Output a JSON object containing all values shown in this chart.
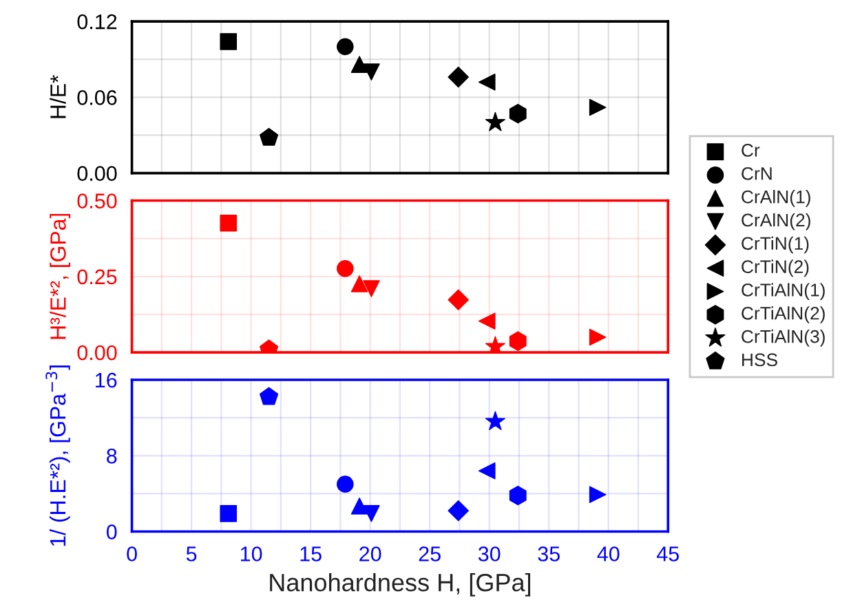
{
  "chart_data": [
    {
      "type": "scatter",
      "ylabel": "H/E*",
      "xlim": [
        0,
        45
      ],
      "ylim": [
        0,
        0.12
      ],
      "xticks": [
        0,
        {
          "value": 2.5,
          "label": null
        },
        5,
        {
          "value": 7.5,
          "label": null
        },
        10,
        {
          "value": 12.5,
          "label": null
        },
        15,
        {
          "value": 17.5,
          "label": null
        },
        20,
        {
          "value": 22.5,
          "label": null
        },
        25,
        {
          "value": 27.5,
          "label": null
        },
        30,
        {
          "value": 32.5,
          "label": null
        },
        35,
        {
          "value": 37.5,
          "label": null
        },
        40,
        {
          "value": 42.5,
          "label": null
        },
        45
      ],
      "yticks": [
        {
          "value": 0,
          "label": "0.00"
        },
        {
          "value": 0.03,
          "label": null
        },
        0.06,
        {
          "value": 0.09,
          "label": null
        },
        0.12
      ],
      "tick_labels": "y",
      "grid": true,
      "legend": "right",
      "series": [
        {
          "name": "Cr",
          "marker": "square",
          "color": "#000000",
          "x": [
            8.1
          ],
          "values": [
            0.104
          ]
        },
        {
          "name": "CrN",
          "marker": "circle",
          "color": "#000000",
          "x": [
            17.9
          ],
          "values": [
            0.1
          ]
        },
        {
          "name": "CrAlN(1)",
          "marker": "triangle",
          "color": "#000000",
          "x": [
            19.1
          ],
          "values": [
            0.086
          ]
        },
        {
          "name": "CrAlN(2)",
          "marker": "triangle-down",
          "color": "#000000",
          "x": [
            20.1
          ],
          "values": [
            0.08
          ]
        },
        {
          "name": "CrTiN(1)",
          "marker": "diamond",
          "color": "#000000",
          "x": [
            27.4
          ],
          "values": [
            0.076
          ]
        },
        {
          "name": "CrTiN(2)",
          "marker": "triangle-left",
          "color": "#000000",
          "x": [
            29.8
          ],
          "values": [
            0.072
          ]
        },
        {
          "name": "CrTiAlN(1)",
          "marker": "triangle-right",
          "color": "#000000",
          "x": [
            39.1
          ],
          "values": [
            0.052
          ]
        },
        {
          "name": "CrTiAlN(2)",
          "color": "#000000",
          "x": [
            32.4
          ],
          "values": [
            0.047
          ]
        },
        {
          "name": "CrTiAlN(3)",
          "marker": "star",
          "color": "#000000",
          "x": [
            30.5
          ],
          "values": [
            0.04
          ]
        },
        {
          "name": "HSS",
          "color": "#000000",
          "x": [
            11.5
          ],
          "values": [
            0.028
          ]
        }
      ]
    },
    {
      "type": "scatter",
      "ylabel": "H³/E*², [GPa]",
      "xlim": [
        0,
        45
      ],
      "ylim": [
        0,
        0.5
      ],
      "xticks": [
        0,
        {
          "value": 2.5,
          "label": null
        },
        5,
        {
          "value": 7.5,
          "label": null
        },
        10,
        {
          "value": 12.5,
          "label": null
        },
        15,
        {
          "value": 17.5,
          "label": null
        },
        20,
        {
          "value": 22.5,
          "label": null
        },
        25,
        {
          "value": 27.5,
          "label": null
        },
        30,
        {
          "value": 32.5,
          "label": null
        },
        35,
        {
          "value": 37.5,
          "label": null
        },
        40,
        {
          "value": 42.5,
          "label": null
        },
        45
      ],
      "yticks": [
        {
          "value": 0,
          "label": "0.00"
        },
        {
          "value": 0.125,
          "label": null
        },
        0.25,
        {
          "value": 0.375,
          "label": null
        },
        {
          "value": 0.5,
          "label": "0.50"
        }
      ],
      "tick_labels": "y",
      "grid": true,
      "series": [
        {
          "marker": "square",
          "color": "#ff0000",
          "x": [
            8.1
          ],
          "values": [
            0.426
          ]
        },
        {
          "marker": "circle",
          "color": "#ff0000",
          "x": [
            17.9
          ],
          "values": [
            0.276
          ]
        },
        {
          "marker": "triangle",
          "color": "#ff0000",
          "x": [
            19.1
          ],
          "values": [
            0.226
          ]
        },
        {
          "marker": "triangle-down",
          "color": "#ff0000",
          "x": [
            20.1
          ],
          "values": [
            0.21
          ]
        },
        {
          "marker": "diamond",
          "color": "#ff0000",
          "x": [
            27.4
          ],
          "values": [
            0.173
          ]
        },
        {
          "marker": "triangle-left",
          "color": "#ff0000",
          "x": [
            29.8
          ],
          "values": [
            0.103
          ]
        },
        {
          "marker": "triangle-right",
          "color": "#ff0000",
          "x": [
            39.1
          ],
          "values": [
            0.05
          ]
        },
        {
          "color": "#ff0000",
          "x": [
            32.4
          ],
          "values": [
            0.037
          ]
        },
        {
          "marker": "star",
          "color": "#ff0000",
          "x": [
            30.5
          ],
          "values": [
            0.019
          ]
        },
        {
          "color": "#ff0000",
          "x": [
            11.5
          ],
          "values": [
            0.01
          ]
        }
      ]
    },
    {
      "type": "scatter",
      "xlabel": "Nanohardness H, [GPa]",
      "ylabel": "1/ (H.E*²), [GPa$^{−3}$]",
      "xlim": [
        0,
        45
      ],
      "ylim": [
        0,
        16
      ],
      "xticks": [
        0,
        {
          "value": 2.5,
          "label": null
        },
        5,
        {
          "value": 7.5,
          "label": null
        },
        10,
        {
          "value": 12.5,
          "label": null
        },
        15,
        {
          "value": 17.5,
          "label": null
        },
        20,
        {
          "value": 22.5,
          "label": null
        },
        25,
        {
          "value": 27.5,
          "label": null
        },
        30,
        {
          "value": 32.5,
          "label": null
        },
        35,
        {
          "value": 37.5,
          "label": null
        },
        40,
        {
          "value": 42.5,
          "label": null
        },
        45
      ],
      "yticks": [
        0,
        {
          "value": 4,
          "label": null
        },
        8,
        {
          "value": 12,
          "label": null
        },
        16
      ],
      "grid": true,
      "series": [
        {
          "marker": "square",
          "color": "#0000ff",
          "x": [
            8.1
          ],
          "values": [
            1.9
          ]
        },
        {
          "marker": "circle",
          "color": "#0000ff",
          "x": [
            17.9
          ],
          "values": [
            5.0
          ]
        },
        {
          "marker": "triangle",
          "color": "#0000ff",
          "x": [
            19.1
          ],
          "values": [
            2.7
          ]
        },
        {
          "marker": "triangle-down",
          "color": "#0000ff",
          "x": [
            20.1
          ],
          "values": [
            1.9
          ]
        },
        {
          "marker": "diamond",
          "color": "#0000ff",
          "x": [
            27.4
          ],
          "values": [
            2.2
          ]
        },
        {
          "marker": "triangle-left",
          "color": "#0000ff",
          "x": [
            29.8
          ],
          "values": [
            6.4
          ]
        },
        {
          "marker": "triangle-right",
          "color": "#0000ff",
          "x": [
            39.1
          ],
          "values": [
            3.9
          ]
        },
        {
          "color": "#0000ff",
          "x": [
            32.4
          ],
          "values": [
            3.8
          ]
        },
        {
          "marker": "star",
          "color": "#0000ff",
          "x": [
            30.5
          ],
          "values": [
            11.6
          ]
        },
        {
          "color": "#0000ff",
          "x": [
            11.5
          ],
          "values": [
            14.2
          ]
        }
      ]
    }
  ]
}
